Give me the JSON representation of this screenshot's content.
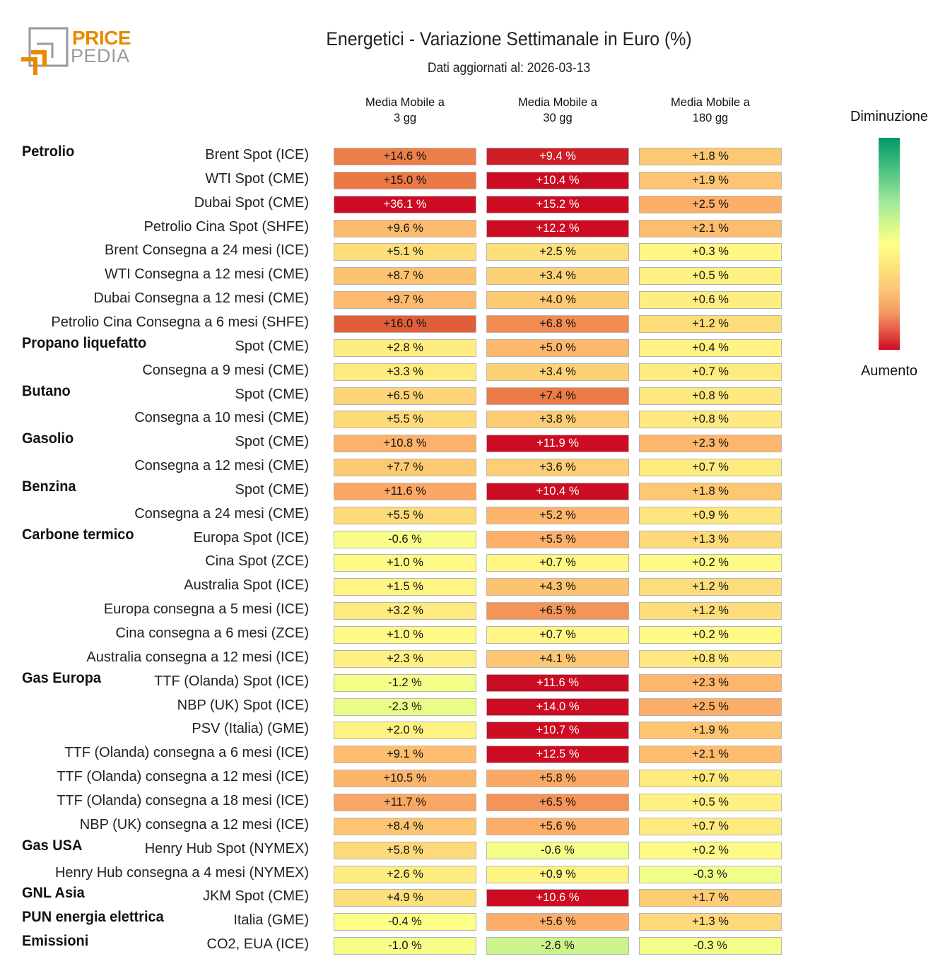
{
  "logo": {
    "line1": "PRICE",
    "line2": "PEDIA"
  },
  "chart_data": {
    "type": "heatmap",
    "title": "Energetici - Variazione Settimanale in Euro (%)",
    "subtitle": "Dati aggiornati al: 2026-03-13",
    "columns": [
      "Media Mobile a\n3 gg",
      "Media Mobile a\n30 gg",
      "Media Mobile a\n180 gg"
    ],
    "legend": {
      "top": "Diminuzione",
      "bottom": "Aumento",
      "top_color": "#009966",
      "mid_color": "#ffff88",
      "bottom_color": "#cc0c22",
      "placement": "right"
    },
    "rows": [
      {
        "group": "Petrolio",
        "label": "Brent Spot (ICE)",
        "values": [
          "+14.6 %",
          "+9.4 %",
          "+1.8 %"
        ]
      },
      {
        "group": "",
        "label": "WTI Spot (CME)",
        "values": [
          "+15.0 %",
          "+10.4 %",
          "+1.9 %"
        ]
      },
      {
        "group": "",
        "label": "Dubai Spot (CME)",
        "values": [
          "+36.1 %",
          "+15.2 %",
          "+2.5 %"
        ]
      },
      {
        "group": "",
        "label": "Petrolio Cina Spot (SHFE)",
        "values": [
          "+9.6 %",
          "+12.2 %",
          "+2.1 %"
        ]
      },
      {
        "group": "",
        "label": "Brent Consegna a 24 mesi (ICE)",
        "values": [
          "+5.1 %",
          "+2.5 %",
          "+0.3 %"
        ]
      },
      {
        "group": "",
        "label": "WTI Consegna a 12 mesi (CME)",
        "values": [
          "+8.7 %",
          "+3.4 %",
          "+0.5 %"
        ]
      },
      {
        "group": "",
        "label": "Dubai Consegna a 12 mesi (CME)",
        "values": [
          "+9.7 %",
          "+4.0 %",
          "+0.6 %"
        ]
      },
      {
        "group": "",
        "label": "Petrolio Cina Consegna a 6 mesi (SHFE)",
        "values": [
          "+16.0 %",
          "+6.8 %",
          "+1.2 %"
        ]
      },
      {
        "group": "Propano liquefatto",
        "label": "Spot (CME)",
        "values": [
          "+2.8 %",
          "+5.0 %",
          "+0.4 %"
        ]
      },
      {
        "group": "",
        "label": "Consegna a 9 mesi (CME)",
        "values": [
          "+3.3 %",
          "+3.4 %",
          "+0.7 %"
        ]
      },
      {
        "group": "Butano",
        "label": "Spot (CME)",
        "values": [
          "+6.5 %",
          "+7.4 %",
          "+0.8 %"
        ]
      },
      {
        "group": "",
        "label": "Consegna a 10 mesi (CME)",
        "values": [
          "+5.5 %",
          "+3.8 %",
          "+0.8 %"
        ]
      },
      {
        "group": "Gasolio",
        "label": "Spot (CME)",
        "values": [
          "+10.8 %",
          "+11.9 %",
          "+2.3 %"
        ]
      },
      {
        "group": "",
        "label": "Consegna a 12 mesi (CME)",
        "values": [
          "+7.7 %",
          "+3.6 %",
          "+0.7 %"
        ]
      },
      {
        "group": "Benzina",
        "label": "Spot (CME)",
        "values": [
          "+11.6 %",
          "+10.4 %",
          "+1.8 %"
        ]
      },
      {
        "group": "",
        "label": "Consegna a 24 mesi (CME)",
        "values": [
          "+5.5 %",
          "+5.2 %",
          "+0.9 %"
        ]
      },
      {
        "group": "Carbone termico",
        "label": "Europa Spot (ICE)",
        "values": [
          "-0.6 %",
          "+5.5 %",
          "+1.3 %"
        ]
      },
      {
        "group": "",
        "label": "Cina Spot (ZCE)",
        "values": [
          "+1.0 %",
          "+0.7 %",
          "+0.2 %"
        ]
      },
      {
        "group": "",
        "label": "Australia Spot (ICE)",
        "values": [
          "+1.5 %",
          "+4.3 %",
          "+1.2 %"
        ]
      },
      {
        "group": "",
        "label": "Europa consegna a 5 mesi (ICE)",
        "values": [
          "+3.2 %",
          "+6.5 %",
          "+1.2 %"
        ]
      },
      {
        "group": "",
        "label": "Cina consegna a 6 mesi (ZCE)",
        "values": [
          "+1.0 %",
          "+0.7 %",
          "+0.2 %"
        ]
      },
      {
        "group": "",
        "label": "Australia consegna a 12 mesi (ICE)",
        "values": [
          "+2.3 %",
          "+4.1 %",
          "+0.8 %"
        ]
      },
      {
        "group": "Gas Europa",
        "label": "TTF (Olanda) Spot (ICE)",
        "values": [
          "-1.2 %",
          "+11.6 %",
          "+2.3 %"
        ]
      },
      {
        "group": "",
        "label": "NBP (UK) Spot (ICE)",
        "values": [
          "-2.3 %",
          "+14.0 %",
          "+2.5 %"
        ]
      },
      {
        "group": "",
        "label": "PSV (Italia) (GME)",
        "values": [
          "+2.0 %",
          "+10.7 %",
          "+1.9 %"
        ]
      },
      {
        "group": "",
        "label": "TTF (Olanda) consegna a 6 mesi (ICE)",
        "values": [
          "+9.1 %",
          "+12.5 %",
          "+2.1 %"
        ]
      },
      {
        "group": "",
        "label": "TTF (Olanda) consegna a 12 mesi (ICE)",
        "values": [
          "+10.5 %",
          "+5.8 %",
          "+0.7 %"
        ]
      },
      {
        "group": "",
        "label": "TTF (Olanda) consegna a 18 mesi (ICE)",
        "values": [
          "+11.7 %",
          "+6.5 %",
          "+0.5 %"
        ]
      },
      {
        "group": "",
        "label": "NBP (UK) consegna a 12 mesi (ICE)",
        "values": [
          "+8.4 %",
          "+5.6 %",
          "+0.7 %"
        ]
      },
      {
        "group": "Gas USA",
        "label": "Henry Hub Spot (NYMEX)",
        "values": [
          "+5.8 %",
          "-0.6 %",
          "+0.2 %"
        ]
      },
      {
        "group": "",
        "label": "Henry Hub consegna a 4 mesi (NYMEX)",
        "values": [
          "+2.6 %",
          "+0.9 %",
          "-0.3 %"
        ]
      },
      {
        "group": "GNL Asia",
        "label": "JKM Spot (CME)",
        "values": [
          "+4.9 %",
          "+10.6 %",
          "+1.7 %"
        ]
      },
      {
        "group": "PUN energia elettrica",
        "label": "Italia (GME)",
        "values": [
          "-0.4 %",
          "+5.6 %",
          "+1.3 %"
        ]
      },
      {
        "group": "Emissioni",
        "label": "CO2, EUA (ICE)",
        "values": [
          "-1.0 %",
          "-2.6 %",
          "-0.3 %"
        ]
      }
    ]
  }
}
